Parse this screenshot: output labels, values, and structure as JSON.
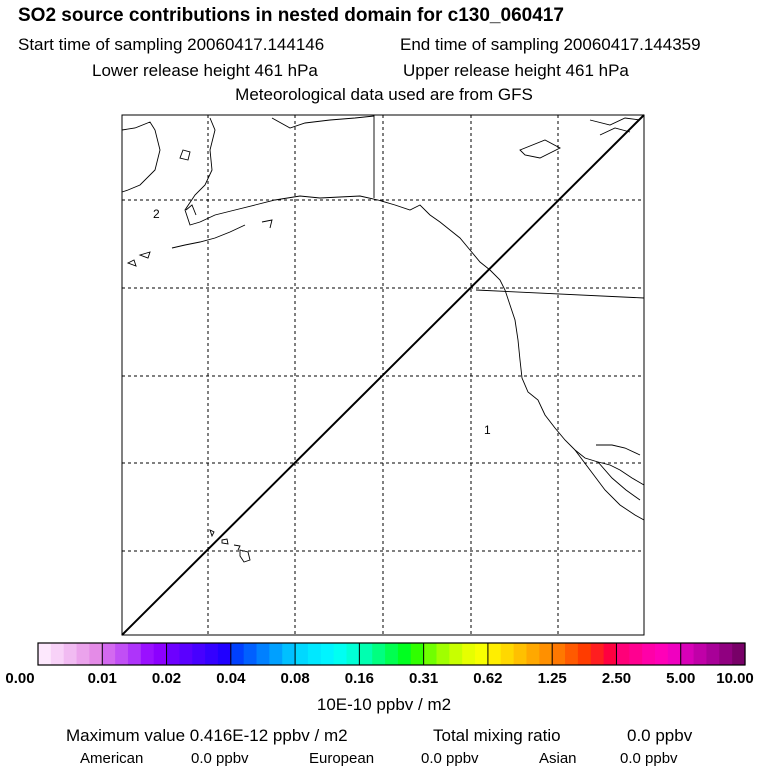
{
  "header": {
    "title": "SO2 source contributions in nested domain for c130_060417",
    "start_time": "Start time of sampling 20060417.144146",
    "end_time": "End time of sampling 20060417.144359",
    "lower_height": "Lower release height  461 hPa",
    "upper_height": "Upper release height  461 hPa",
    "met_data": "Meteorological data used are from GFS"
  },
  "map": {
    "markers": [
      {
        "label": "2",
        "name": "marker-2"
      },
      {
        "label": "1",
        "name": "marker-1"
      }
    ],
    "coast_color": "#000000",
    "grid_color": "#000000"
  },
  "colorbar": {
    "ticks": [
      "0.00",
      "0.01",
      "0.02",
      "0.04",
      "0.08",
      "0.16",
      "0.31",
      "0.62",
      "1.25",
      "2.50",
      "5.00",
      "10.00"
    ],
    "colors": [
      "#fde8fd",
      "#f8d2f8",
      "#f1bbf2",
      "#eba3ec",
      "#e48be7",
      "#d369f0",
      "#c14ff5",
      "#ae34fa",
      "#9a10ff",
      "#8c00ff",
      "#6d00ff",
      "#5a00ff",
      "#4700ff",
      "#3400ff",
      "#2000ff",
      "#0040ff",
      "#0060ff",
      "#0080ff",
      "#00a0ff",
      "#00c0ff",
      "#00d8ff",
      "#00e8ff",
      "#00f4ff",
      "#00fff2",
      "#00ffd6",
      "#00ffb0",
      "#00ff80",
      "#00ff50",
      "#00ff20",
      "#30ff00",
      "#70ff00",
      "#a0ff00",
      "#c8ff00",
      "#e6ff00",
      "#f8ff00",
      "#ffee00",
      "#ffd800",
      "#ffc000",
      "#ffa800",
      "#ff9000",
      "#ff7800",
      "#ff5a00",
      "#ff3c00",
      "#ff1e20",
      "#ff0040",
      "#ff0078",
      "#ff0090",
      "#ff00a8",
      "#ff00b8",
      "#f000c0",
      "#d800b8",
      "#c000a8",
      "#a80098",
      "#900080",
      "#780068"
    ],
    "unit": "10E-10 ppbv / m2"
  },
  "summary": {
    "max_label": "Maximum value  0.416E-12 ppbv / m2",
    "total_label": "Total mixing ratio",
    "total_value": "0.0 ppbv",
    "regions": [
      {
        "name": "American",
        "value": "0.0 ppbv"
      },
      {
        "name": "European",
        "value": "0.0 ppbv"
      },
      {
        "name": "Asian",
        "value": "0.0 ppbv"
      }
    ]
  }
}
